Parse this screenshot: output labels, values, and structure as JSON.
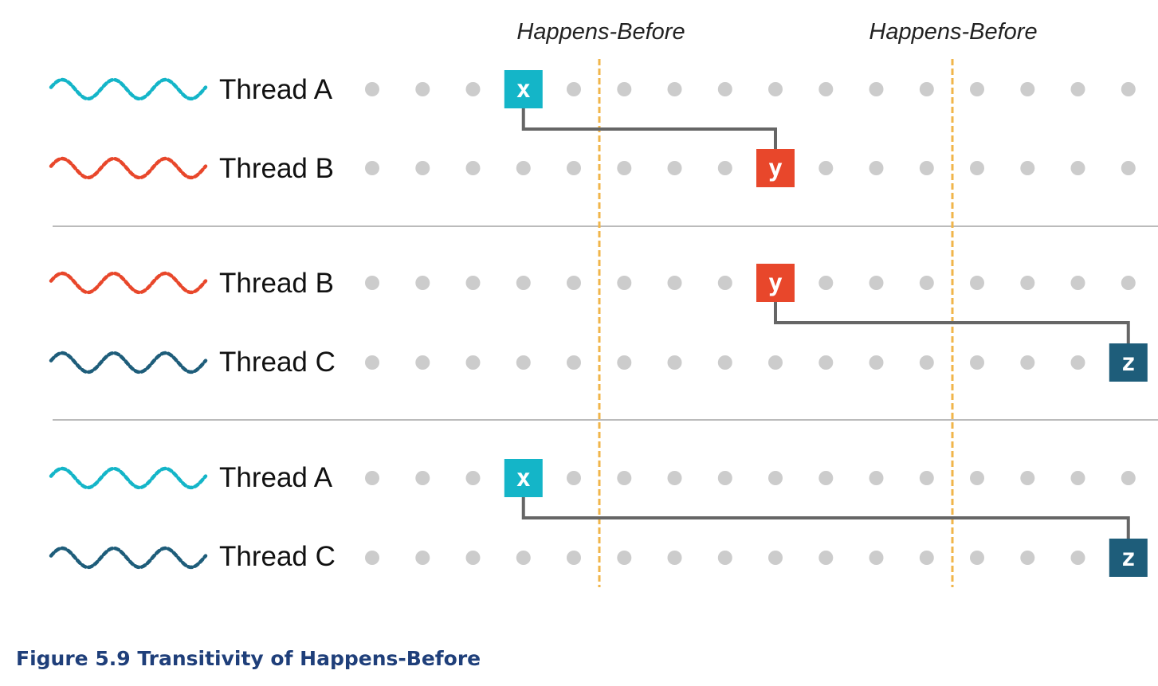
{
  "annotations": {
    "happens_before_left": "Happens-Before",
    "happens_before_right": "Happens-Before"
  },
  "caption": "Figure 5.9 Transitivity of Happens-Before",
  "colors": {
    "thread_a": "#14b5c8",
    "thread_b": "#e8472b",
    "thread_c": "#1e5d7a",
    "dot": "#cccccc",
    "connector": "#666666",
    "divider": "#bbbbbb",
    "boundary": "#f0b54a",
    "caption": "#1f3f7a"
  },
  "panels": [
    {
      "rows": [
        {
          "label": "Thread A",
          "color_key": "thread_a",
          "event": {
            "step": 3,
            "text": "x"
          }
        },
        {
          "label": "Thread B",
          "color_key": "thread_b",
          "event": {
            "step": 8,
            "text": "y"
          }
        }
      ]
    },
    {
      "rows": [
        {
          "label": "Thread B",
          "color_key": "thread_b",
          "event": {
            "step": 8,
            "text": "y"
          }
        },
        {
          "label": "Thread C",
          "color_key": "thread_c",
          "event": {
            "step": 15,
            "text": "z"
          }
        }
      ]
    },
    {
      "rows": [
        {
          "label": "Thread A",
          "color_key": "thread_a",
          "event": {
            "step": 3,
            "text": "x"
          }
        },
        {
          "label": "Thread C",
          "color_key": "thread_c",
          "event": {
            "step": 15,
            "text": "z"
          }
        }
      ]
    }
  ]
}
